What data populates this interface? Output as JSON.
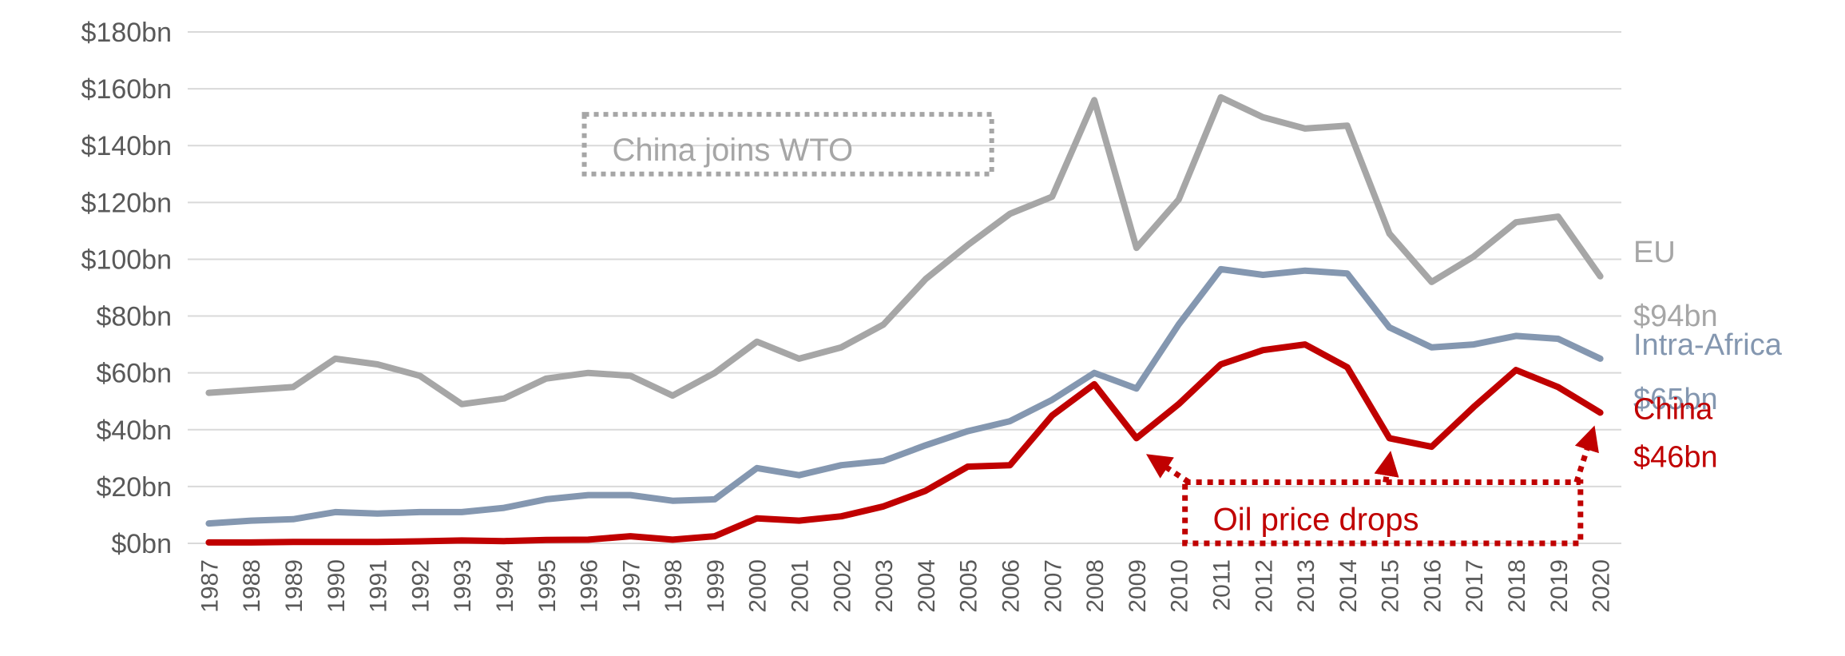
{
  "chart_data": {
    "type": "line",
    "title": "",
    "xlabel": "",
    "ylabel": "",
    "ylim": [
      0,
      180
    ],
    "y_ticks": [
      0,
      20,
      40,
      60,
      80,
      100,
      120,
      140,
      160,
      180
    ],
    "y_tick_labels": [
      "$0bn",
      "$20bn",
      "$40bn",
      "$60bn",
      "$80bn",
      "$100bn",
      "$120bn",
      "$140bn",
      "$160bn",
      "$180bn"
    ],
    "grid": true,
    "legend": "none",
    "x": [
      "1987",
      "1988",
      "1989",
      "1990",
      "1991",
      "1992",
      "1993",
      "1994",
      "1995",
      "1996",
      "1997",
      "1998",
      "1999",
      "2000",
      "2001",
      "2002",
      "2003",
      "2004",
      "2005",
      "2006",
      "2007",
      "2008",
      "2009",
      "2010",
      "2011",
      "2012",
      "2013",
      "2014",
      "2015",
      "2016",
      "2017",
      "2018",
      "2019",
      "2020"
    ],
    "series": [
      {
        "name": "EU",
        "color": "#a6a6a6",
        "end_label": "$94bn",
        "values": [
          53,
          54,
          55,
          65,
          63,
          59,
          49,
          51,
          58,
          60,
          59,
          52,
          60,
          71,
          65,
          69,
          77,
          93,
          105,
          116,
          122,
          156,
          104,
          121,
          157,
          150,
          146,
          147,
          109,
          92,
          101,
          113,
          115,
          94
        ]
      },
      {
        "name": "Intra-Africa",
        "color": "#8497b0",
        "end_label": "$65bn",
        "values": [
          7,
          8,
          8.5,
          11,
          10.5,
          11,
          11,
          12.5,
          15.5,
          17,
          17,
          15,
          15.5,
          26.5,
          24,
          27.5,
          29,
          34.5,
          39.5,
          43,
          50.5,
          60,
          54.5,
          77,
          96.5,
          94.5,
          96,
          95,
          76,
          69,
          70,
          73,
          72,
          65
        ]
      },
      {
        "name": "China",
        "color": "#c00000",
        "end_label": "$46bn",
        "values": [
          0.3,
          0.3,
          0.5,
          0.5,
          0.5,
          0.7,
          1,
          0.8,
          1.2,
          1.3,
          2.5,
          1.3,
          2.5,
          8.8,
          8,
          9.5,
          13,
          18.5,
          27,
          27.5,
          45,
          56,
          37,
          49,
          63,
          68,
          70,
          62,
          37,
          34,
          48,
          61,
          55,
          46
        ]
      }
    ],
    "annotations": [
      {
        "text": "China joins WTO",
        "color": "#a6a6a6"
      },
      {
        "text": "Oil price drops",
        "color": "#c00000",
        "arrow_targets": [
          [
            "2009",
            37
          ],
          [
            "2015",
            37
          ],
          [
            "2020",
            46
          ]
        ]
      }
    ]
  }
}
